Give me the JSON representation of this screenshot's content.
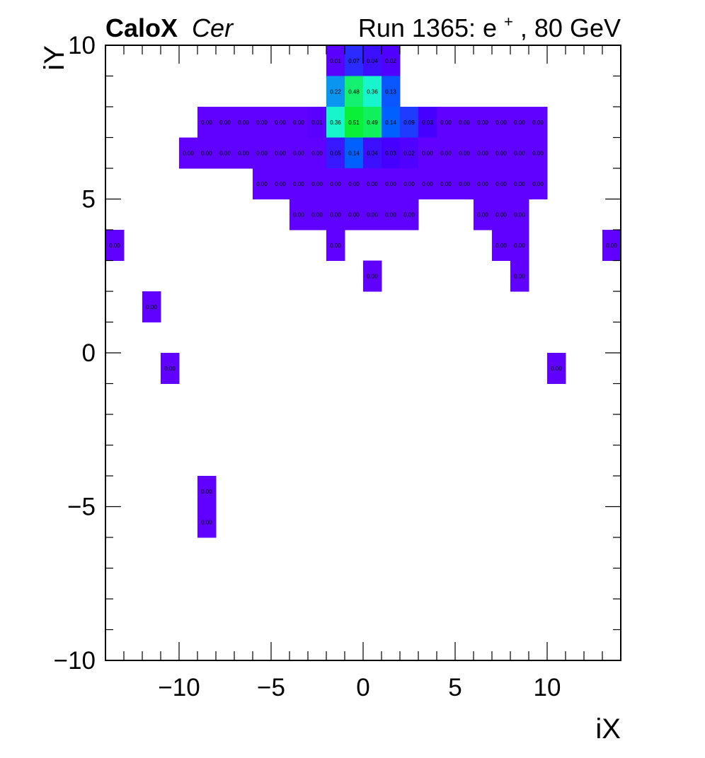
{
  "header": {
    "brand": "CaloX",
    "channel": "Cer",
    "run_prefix": "Run 1365: e",
    "run_sup": "+",
    "run_suffix": ", 80 GeV"
  },
  "chart_data": {
    "type": "heatmap",
    "title": "CaloX Cer Run 1365: e+, 80 GeV",
    "xlabel": "iX",
    "ylabel": "iY",
    "xlim": [
      -14,
      14
    ],
    "ylim": [
      -10,
      10
    ],
    "xticks": [
      -10,
      -5,
      0,
      5,
      10
    ],
    "yticks": [
      -10,
      -5,
      0,
      5,
      10
    ],
    "xtick_labels": [
      "−10",
      "−5",
      "0",
      "5",
      "10"
    ],
    "ytick_labels": [
      "−10",
      "−5",
      "0",
      "5",
      "10"
    ],
    "cells": [
      {
        "x": -2,
        "y": 9,
        "v": 0.01,
        "label": "0.01"
      },
      {
        "x": -1,
        "y": 9,
        "v": 0.07,
        "label": "0.07"
      },
      {
        "x": 0,
        "y": 9,
        "v": 0.04,
        "label": "0.04"
      },
      {
        "x": 1,
        "y": 9,
        "v": 0.02,
        "label": "0.02"
      },
      {
        "x": -2,
        "y": 8,
        "v": 0.22,
        "label": "0.22"
      },
      {
        "x": -1,
        "y": 8,
        "v": 0.48,
        "label": "0.48"
      },
      {
        "x": 0,
        "y": 8,
        "v": 0.36,
        "label": "0.36"
      },
      {
        "x": 1,
        "y": 8,
        "v": 0.13,
        "label": "0.13"
      },
      {
        "x": -9,
        "y": 7,
        "v": 0.0,
        "label": "0.00"
      },
      {
        "x": -8,
        "y": 7,
        "v": 0.0,
        "label": "0.00"
      },
      {
        "x": -7,
        "y": 7,
        "v": 0.0,
        "label": "0.00"
      },
      {
        "x": -6,
        "y": 7,
        "v": 0.0,
        "label": "0.00"
      },
      {
        "x": -5,
        "y": 7,
        "v": 0.0,
        "label": "0.00"
      },
      {
        "x": -4,
        "y": 7,
        "v": 0.0,
        "label": "0.00"
      },
      {
        "x": -3,
        "y": 7,
        "v": 0.01,
        "label": "0.01"
      },
      {
        "x": -2,
        "y": 7,
        "v": 0.36,
        "label": "0.36"
      },
      {
        "x": -1,
        "y": 7,
        "v": 0.51,
        "label": "0.51"
      },
      {
        "x": 0,
        "y": 7,
        "v": 0.49,
        "label": "0.49"
      },
      {
        "x": 1,
        "y": 7,
        "v": 0.14,
        "label": "0.14"
      },
      {
        "x": 2,
        "y": 7,
        "v": 0.09,
        "label": "0.09"
      },
      {
        "x": 3,
        "y": 7,
        "v": 0.03,
        "label": "0.03"
      },
      {
        "x": 4,
        "y": 7,
        "v": 0.0,
        "label": "0.00"
      },
      {
        "x": 5,
        "y": 7,
        "v": 0.0,
        "label": "0.00"
      },
      {
        "x": 6,
        "y": 7,
        "v": 0.0,
        "label": "0.00"
      },
      {
        "x": 7,
        "y": 7,
        "v": 0.0,
        "label": "0.00"
      },
      {
        "x": 8,
        "y": 7,
        "v": 0.0,
        "label": "0.00"
      },
      {
        "x": 9,
        "y": 7,
        "v": 0.0,
        "label": "0.00"
      },
      {
        "x": -10,
        "y": 6,
        "v": 0.0,
        "label": "0.00"
      },
      {
        "x": -9,
        "y": 6,
        "v": 0.0,
        "label": "0.00"
      },
      {
        "x": -8,
        "y": 6,
        "v": 0.0,
        "label": "0.00"
      },
      {
        "x": -7,
        "y": 6,
        "v": 0.0,
        "label": "0.00"
      },
      {
        "x": -6,
        "y": 6,
        "v": 0.0,
        "label": "0.00"
      },
      {
        "x": -5,
        "y": 6,
        "v": 0.0,
        "label": "0.00"
      },
      {
        "x": -4,
        "y": 6,
        "v": 0.0,
        "label": "0.00"
      },
      {
        "x": -3,
        "y": 6,
        "v": 0.0,
        "label": "0.00"
      },
      {
        "x": -2,
        "y": 6,
        "v": 0.05,
        "label": "0.05"
      },
      {
        "x": -1,
        "y": 6,
        "v": 0.14,
        "label": "0.14"
      },
      {
        "x": 0,
        "y": 6,
        "v": 0.04,
        "label": "0.04"
      },
      {
        "x": 1,
        "y": 6,
        "v": 0.03,
        "label": "0.03"
      },
      {
        "x": 2,
        "y": 6,
        "v": 0.02,
        "label": "0.02"
      },
      {
        "x": 3,
        "y": 6,
        "v": 0.0,
        "label": "0.00"
      },
      {
        "x": 4,
        "y": 6,
        "v": 0.0,
        "label": "0.00"
      },
      {
        "x": 5,
        "y": 6,
        "v": 0.0,
        "label": "0.00"
      },
      {
        "x": 6,
        "y": 6,
        "v": 0.0,
        "label": "0.00"
      },
      {
        "x": 7,
        "y": 6,
        "v": 0.0,
        "label": "0.00"
      },
      {
        "x": 8,
        "y": 6,
        "v": 0.0,
        "label": "0.00"
      },
      {
        "x": 9,
        "y": 6,
        "v": 0.0,
        "label": "0.00"
      },
      {
        "x": -6,
        "y": 5,
        "v": 0.0,
        "label": "0.00"
      },
      {
        "x": -5,
        "y": 5,
        "v": 0.0,
        "label": "0.00"
      },
      {
        "x": -4,
        "y": 5,
        "v": 0.0,
        "label": "0.00"
      },
      {
        "x": -3,
        "y": 5,
        "v": 0.0,
        "label": "0.00"
      },
      {
        "x": -2,
        "y": 5,
        "v": 0.0,
        "label": "0.00"
      },
      {
        "x": -1,
        "y": 5,
        "v": 0.0,
        "label": "0.00"
      },
      {
        "x": 0,
        "y": 5,
        "v": 0.0,
        "label": "0.00"
      },
      {
        "x": 1,
        "y": 5,
        "v": 0.0,
        "label": "0.00"
      },
      {
        "x": 2,
        "y": 5,
        "v": 0.0,
        "label": "0.00"
      },
      {
        "x": 3,
        "y": 5,
        "v": 0.0,
        "label": "0.00"
      },
      {
        "x": 4,
        "y": 5,
        "v": 0.0,
        "label": "0.00"
      },
      {
        "x": 5,
        "y": 5,
        "v": 0.0,
        "label": "0.00"
      },
      {
        "x": 6,
        "y": 5,
        "v": 0.0,
        "label": "0.00"
      },
      {
        "x": 7,
        "y": 5,
        "v": 0.0,
        "label": "0.00"
      },
      {
        "x": 8,
        "y": 5,
        "v": 0.0,
        "label": "0.00"
      },
      {
        "x": 9,
        "y": 5,
        "v": 0.0,
        "label": "0.00"
      },
      {
        "x": -4,
        "y": 4,
        "v": 0.0,
        "label": "0.00"
      },
      {
        "x": -3,
        "y": 4,
        "v": 0.0,
        "label": "0.00"
      },
      {
        "x": -2,
        "y": 4,
        "v": 0.0,
        "label": "0.00"
      },
      {
        "x": -1,
        "y": 4,
        "v": 0.0,
        "label": "0.00"
      },
      {
        "x": 0,
        "y": 4,
        "v": 0.0,
        "label": "0.00"
      },
      {
        "x": 1,
        "y": 4,
        "v": 0.0,
        "label": "0.00"
      },
      {
        "x": 2,
        "y": 4,
        "v": 0.0,
        "label": "0.00"
      },
      {
        "x": 6,
        "y": 4,
        "v": 0.0,
        "label": "0.00"
      },
      {
        "x": 7,
        "y": 4,
        "v": 0.0,
        "label": "0.00"
      },
      {
        "x": 8,
        "y": 4,
        "v": 0.0,
        "label": "0.00"
      },
      {
        "x": -14,
        "y": 3,
        "v": 0.0,
        "label": "0.00"
      },
      {
        "x": -2,
        "y": 3,
        "v": 0.0,
        "label": "0.00"
      },
      {
        "x": 7,
        "y": 3,
        "v": 0.0,
        "label": "0.00"
      },
      {
        "x": 8,
        "y": 3,
        "v": 0.0,
        "label": "0.00"
      },
      {
        "x": 13,
        "y": 3,
        "v": 0.0,
        "label": "0.00"
      },
      {
        "x": 0,
        "y": 2,
        "v": 0.0,
        "label": "0.00"
      },
      {
        "x": 8,
        "y": 2,
        "v": 0.0,
        "label": "0.00"
      },
      {
        "x": -12,
        "y": 1,
        "v": 0.0,
        "label": "0.00"
      },
      {
        "x": -11,
        "y": -1,
        "v": 0.0,
        "label": "0.00"
      },
      {
        "x": 10,
        "y": -1,
        "v": 0.0,
        "label": "0.00"
      },
      {
        "x": -9,
        "y": -5,
        "v": 0.0,
        "label": "0.00"
      },
      {
        "x": -9,
        "y": -6,
        "v": 0.0,
        "label": "0.00"
      }
    ],
    "colors": {
      "0.00": "#6000ff",
      "0.01": "#5a00ff",
      "0.02": "#5000ff",
      "0.03": "#4600ff",
      "0.04": "#3c10ff",
      "0.05": "#3a18ff",
      "0.07": "#2a2cff",
      "0.09": "#1e3cff",
      "0.13": "#0a56ff",
      "0.14": "#0060ff",
      "0.22": "#0a96f0",
      "0.36": "#18f4cc",
      "0.48": "#14f070",
      "0.49": "#10f05c",
      "0.51": "#0af038"
    }
  }
}
